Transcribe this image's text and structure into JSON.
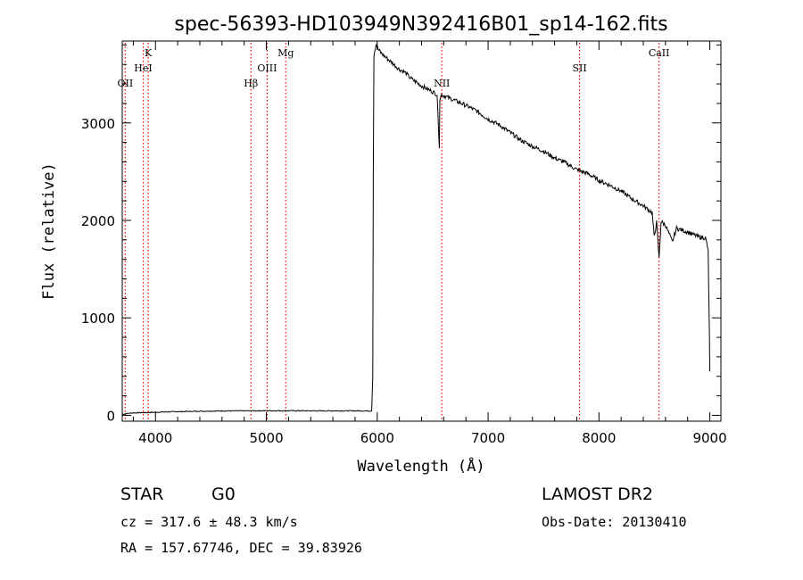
{
  "chart_data": {
    "type": "line",
    "title": "spec-56393-HD103949N392416B01_sp14-162.fits",
    "xlabel": "Wavelength (Å)",
    "ylabel": "Flux (relative)",
    "xlim": [
      3700,
      9100
    ],
    "ylim": [
      -60,
      3840
    ],
    "xticks": [
      4000,
      5000,
      6000,
      7000,
      8000,
      9000
    ],
    "yticks": [
      0,
      1000,
      2000,
      3000
    ],
    "grid": false,
    "line_color": "#000000",
    "marker_color": "#ff0000",
    "series": [
      {
        "x": [
          3700,
          3750,
          3800,
          3900,
          4000,
          4200,
          4400,
          4600,
          4800,
          5000,
          5200,
          5400,
          5600,
          5800,
          5950,
          5960,
          5965,
          5970,
          5990,
          6010,
          6050,
          6100,
          6150,
          6200,
          6250,
          6300,
          6350,
          6400,
          6450,
          6500,
          6540,
          6560,
          6565,
          6580,
          6620,
          6700,
          6800,
          6900,
          7000,
          7100,
          7200,
          7300,
          7400,
          7500,
          7600,
          7700,
          7800,
          7900,
          8000,
          8100,
          8200,
          8300,
          8400,
          8480,
          8498,
          8520,
          8542,
          8560,
          8600,
          8662,
          8700,
          8800,
          8900,
          8960,
          8985,
          8995,
          9000
        ],
        "y": [
          10,
          20,
          25,
          28,
          32,
          38,
          42,
          45,
          46,
          47,
          47,
          46,
          46,
          46,
          45,
          400,
          2500,
          3700,
          3810,
          3750,
          3700,
          3650,
          3600,
          3550,
          3520,
          3460,
          3420,
          3380,
          3350,
          3320,
          3290,
          2740,
          3250,
          3290,
          3270,
          3230,
          3180,
          3120,
          3040,
          2980,
          2900,
          2820,
          2760,
          2710,
          2640,
          2590,
          2520,
          2480,
          2410,
          2360,
          2300,
          2220,
          2150,
          2080,
          1830,
          1980,
          1610,
          1990,
          1950,
          1780,
          1920,
          1880,
          1830,
          1820,
          1700,
          900,
          450
        ]
      }
    ],
    "line_markers": [
      {
        "label": "OII",
        "x": 3727,
        "row": 3
      },
      {
        "label": "K",
        "x": 3934,
        "row": 1
      },
      {
        "label": "HeI",
        "x": 3889,
        "row": 2
      },
      {
        "label": "Hβ",
        "x": 4861,
        "row": 3
      },
      {
        "label": "OIII",
        "x": 5007,
        "row": 2
      },
      {
        "label": "Mg",
        "x": 5175,
        "row": 1
      },
      {
        "label": "NII",
        "x": 6583,
        "row": 3
      },
      {
        "label": "SII",
        "x": 7825,
        "row": 2
      },
      {
        "label": "CaII",
        "x": 8542,
        "row": 1
      }
    ]
  },
  "info": {
    "class_label": "STAR",
    "subclass_label": "G0",
    "survey": "LAMOST DR2",
    "cz": "cz = 317.6 ± 48.3 km/s",
    "obs_date": "Obs-Date: 20130410",
    "coords": "RA = 157.67746, DEC =  39.83926"
  }
}
